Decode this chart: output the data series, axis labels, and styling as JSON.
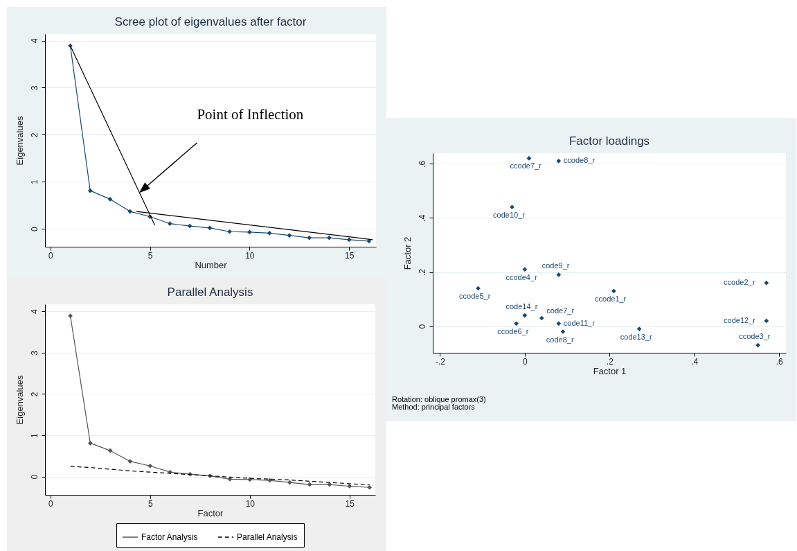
{
  "chart_data": [
    {
      "type": "line",
      "title": "Scree plot of eigenvalues after factor",
      "xlabel": "Number",
      "ylabel": "Eigenvalues",
      "x": [
        1,
        2,
        3,
        4,
        5,
        6,
        7,
        8,
        9,
        10,
        11,
        12,
        13,
        14,
        15,
        16
      ],
      "series": [
        {
          "color": "#1a476f",
          "marker": "diamond",
          "values": [
            3.89,
            0.81,
            0.63,
            0.37,
            0.26,
            0.11,
            0.06,
            0.02,
            -0.06,
            -0.07,
            -0.09,
            -0.14,
            -0.19,
            -0.19,
            -0.23,
            -0.26
          ]
        },
        {
          "type": "line",
          "color": "#000000",
          "marker": "none",
          "x": [
            1,
            5.24
          ],
          "values": [
            3.89,
            0.08
          ]
        },
        {
          "type": "line",
          "color": "#000000",
          "marker": "none",
          "x": [
            4.32,
            16.18
          ],
          "values": [
            0.37,
            -0.23
          ]
        }
      ],
      "xlim": [
        -0.27,
        16.35
      ],
      "ylim": [
        -0.38,
        4.14
      ],
      "xticks": [
        0,
        5,
        10,
        15
      ],
      "yticks": [
        0,
        1,
        2,
        3,
        4
      ],
      "grid": "y",
      "annotations": [
        "Point of Inflection"
      ]
    },
    {
      "type": "line",
      "title": "Parallel Analysis",
      "xlabel": "Factor",
      "ylabel": "Eigenvalues",
      "x": [
        1,
        2,
        3,
        4,
        5,
        6,
        7,
        8,
        9,
        10,
        11,
        12,
        13,
        14,
        15,
        16
      ],
      "series": [
        {
          "name": "Factor Analysis",
          "color": "#555555",
          "marker": "diamond",
          "line_style": "solid",
          "values": [
            3.89,
            0.81,
            0.63,
            0.37,
            0.26,
            0.11,
            0.06,
            0.02,
            -0.06,
            -0.07,
            -0.09,
            -0.14,
            -0.19,
            -0.19,
            -0.23,
            -0.26
          ]
        },
        {
          "name": "Parallel Analysis",
          "color": "#000000",
          "marker": "none",
          "line_style": "dashed",
          "values": [
            0.25,
            0.22,
            0.18,
            0.14,
            0.11,
            0.08,
            0.05,
            0.02,
            -0.01,
            -0.04,
            -0.06,
            -0.08,
            -0.11,
            -0.14,
            -0.17,
            -0.2
          ]
        }
      ],
      "xlim": [
        -0.27,
        16.29
      ],
      "ylim": [
        -0.44,
        4.17
      ],
      "xticks": [
        0,
        5,
        10,
        15
      ],
      "yticks": [
        0,
        1,
        2,
        3,
        4
      ],
      "grid": "y",
      "legend": "bottom"
    },
    {
      "type": "scatter",
      "title": "Factor loadings",
      "xlabel": "Factor 1",
      "ylabel": "Factor 2",
      "marker": "diamond",
      "x": [
        0.01,
        0.08,
        -0.03,
        0,
        0.08,
        -0.11,
        0.57,
        0.21,
        0.27,
        0.57,
        0.55,
        -0.02,
        0,
        0.04,
        0.08,
        0.09
      ],
      "series": [
        {
          "color": "#1a476f",
          "values": [
            0.62,
            0.61,
            0.44,
            0.21,
            0.19,
            0.14,
            0.16,
            0.13,
            -0.01,
            0.02,
            -0.07,
            0.01,
            0.04,
            0.03,
            0.01,
            -0.02
          ]
        }
      ],
      "xlim": [
        -0.217,
        0.616
      ],
      "ylim": [
        -0.098,
        0.639
      ],
      "xticks": [
        {
          "value": -0.2,
          "label": "-.2"
        },
        0,
        {
          "value": 0.2,
          "label": ".2"
        },
        {
          "value": 0.4,
          "label": ".4"
        },
        {
          "value": 0.6,
          "label": ".6"
        }
      ],
      "yticks": [
        0,
        {
          "value": 0.2,
          "label": ".2"
        },
        {
          "value": 0.4,
          "label": ".4"
        },
        {
          "value": 0.6,
          "label": ".6"
        }
      ],
      "grid": "y",
      "annotations": [
        {
          "text": "ccode7_r",
          "x": 0.01,
          "y": 0.62
        },
        {
          "text": "ccode8_r",
          "x": 0.08,
          "y": 0.61
        },
        {
          "text": "code10_r",
          "x": -0.03,
          "y": 0.44
        },
        {
          "text": "ccode4_r",
          "x": 0,
          "y": 0.21
        },
        {
          "text": "code9_r",
          "x": 0.08,
          "y": 0.19
        },
        {
          "text": "ccode5_r",
          "x": -0.11,
          "y": 0.14
        },
        {
          "text": "ccode2_r",
          "x": 0.57,
          "y": 0.16
        },
        {
          "text": "ccode1_r",
          "x": 0.21,
          "y": 0.13
        },
        {
          "text": "code13_r",
          "x": 0.27,
          "y": -0.01
        },
        {
          "text": "code12_r",
          "x": 0.57,
          "y": 0.02
        },
        {
          "text": "ccode3_r",
          "x": 0.55,
          "y": -0.07
        },
        {
          "text": "ccode6_r",
          "x": -0.02,
          "y": 0.01
        },
        {
          "text": "code14_r",
          "x": 0,
          "y": 0.04
        },
        {
          "text": "code7_r",
          "x": 0.04,
          "y": 0.03
        },
        {
          "text": "code11_r",
          "x": 0.08,
          "y": 0.01
        },
        {
          "text": "code8_r",
          "x": 0.09,
          "y": -0.02
        },
        "Rotation: oblique promax(3)",
        "Method: principal factors"
      ]
    }
  ]
}
